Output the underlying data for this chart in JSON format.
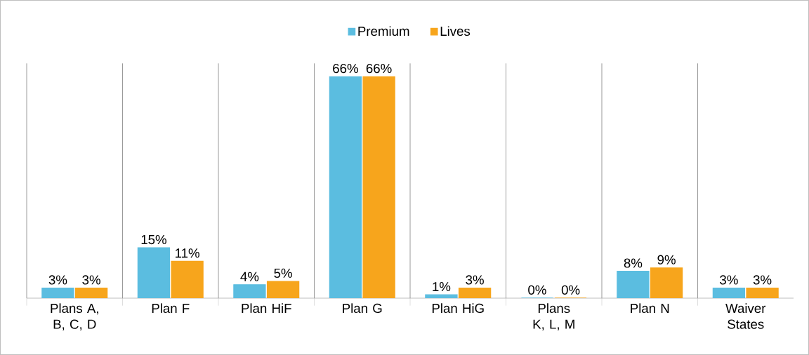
{
  "chart_data": {
    "type": "bar",
    "categories": [
      "Plans A, B, C, D",
      "Plan F",
      "Plan HiF",
      "Plan G",
      "Plan HiG",
      "Plans K, L, M",
      "Plan N",
      "Waiver States"
    ],
    "series": [
      {
        "name": "Premium",
        "color": "#5bbde0",
        "values": [
          3,
          15,
          4,
          66,
          1,
          0,
          8,
          3
        ],
        "value_labels": [
          "3%",
          "15%",
          "4%",
          "66%",
          "1%",
          "0%",
          "8%",
          "3%"
        ]
      },
      {
        "name": "Lives",
        "color": "#f7a51c",
        "values": [
          3,
          11,
          5,
          66,
          3,
          0,
          9,
          3
        ],
        "value_labels": [
          "3%",
          "11%",
          "5%",
          "66%",
          "3%",
          "0%",
          "9%",
          "3%"
        ]
      }
    ],
    "grid": "x",
    "legend": "top"
  }
}
